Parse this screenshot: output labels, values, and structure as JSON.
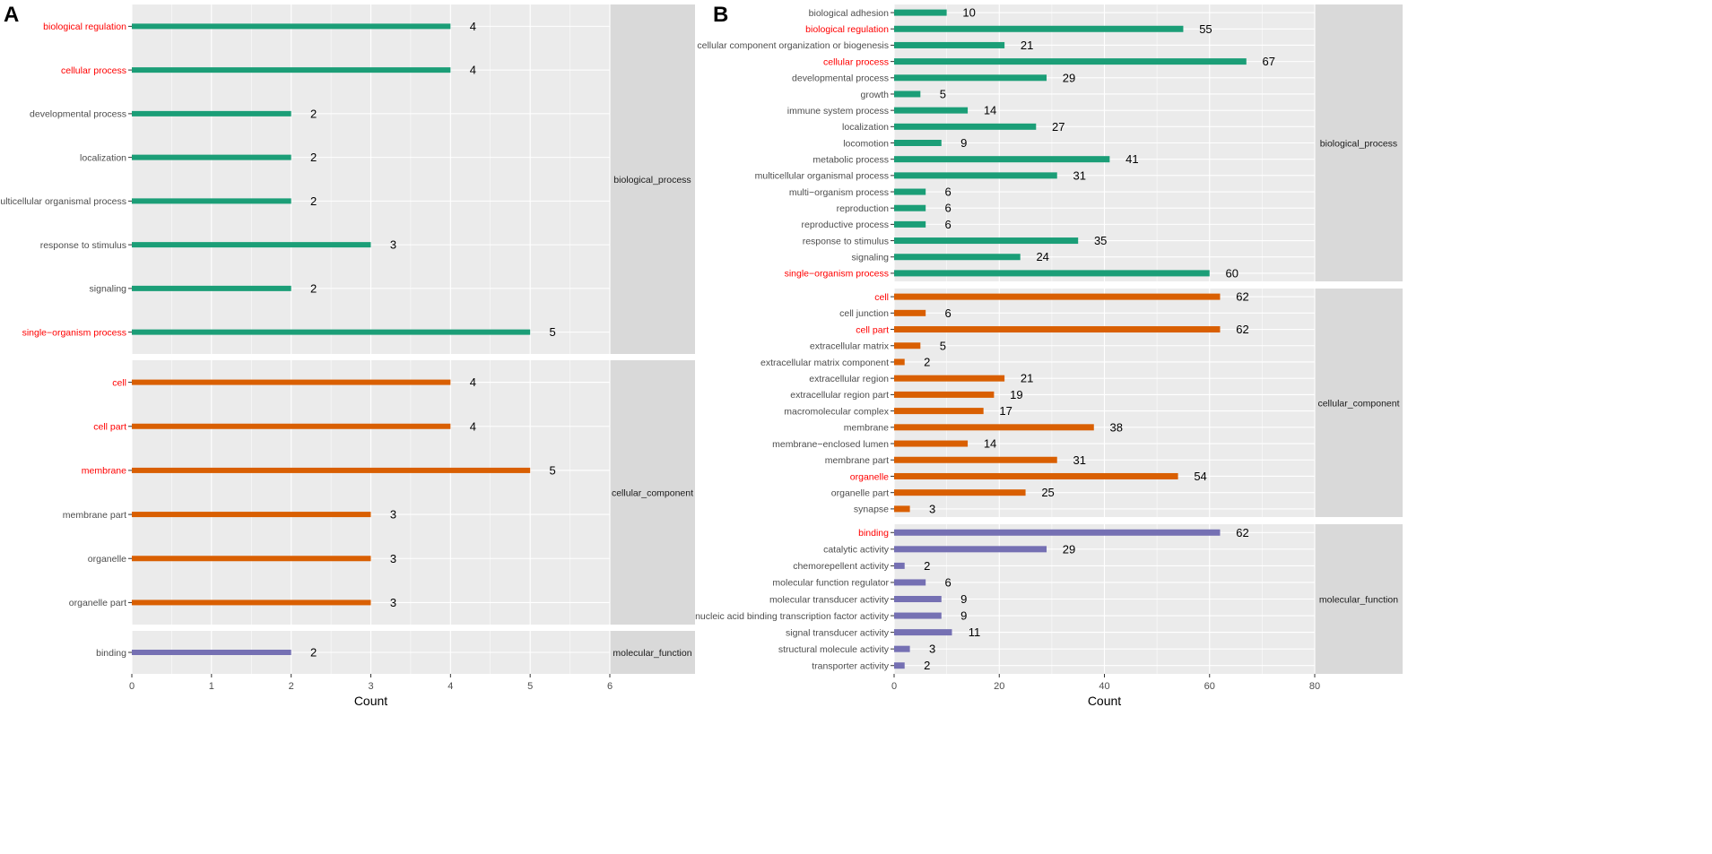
{
  "chart_data": [
    {
      "panel_label": "A",
      "type": "bar",
      "orientation": "horizontal",
      "xlabel": "Count",
      "xlim": [
        0,
        7
      ],
      "xticks": [
        0,
        1,
        2,
        3,
        4,
        5,
        6
      ],
      "colors": {
        "biological_process": "#1b9e77",
        "cellular_component": "#d95f02",
        "molecular_function": "#7570b3",
        "highlight_label": "#ff0000",
        "normal_label": "#4d4d4d"
      },
      "facets": [
        {
          "name": "biological_process",
          "items": [
            {
              "label": "biological regulation",
              "value": 4,
              "highlight": true
            },
            {
              "label": "cellular process",
              "value": 4,
              "highlight": true
            },
            {
              "label": "developmental process",
              "value": 2,
              "highlight": false
            },
            {
              "label": "localization",
              "value": 2,
              "highlight": false
            },
            {
              "label": "multicellular organismal process",
              "value": 2,
              "highlight": false
            },
            {
              "label": "response to stimulus",
              "value": 3,
              "highlight": false
            },
            {
              "label": "signaling",
              "value": 2,
              "highlight": false
            },
            {
              "label": "single−organism process",
              "value": 5,
              "highlight": true
            }
          ]
        },
        {
          "name": "cellular_component",
          "items": [
            {
              "label": "cell",
              "value": 4,
              "highlight": true
            },
            {
              "label": "cell part",
              "value": 4,
              "highlight": true
            },
            {
              "label": "membrane",
              "value": 5,
              "highlight": true
            },
            {
              "label": "membrane part",
              "value": 3,
              "highlight": false
            },
            {
              "label": "organelle",
              "value": 3,
              "highlight": false
            },
            {
              "label": "organelle part",
              "value": 3,
              "highlight": false
            }
          ]
        },
        {
          "name": "molecular_function",
          "items": [
            {
              "label": "binding",
              "value": 2,
              "highlight": false
            }
          ]
        }
      ]
    },
    {
      "panel_label": "B",
      "type": "bar",
      "orientation": "horizontal",
      "xlabel": "Count",
      "xlim": [
        0,
        80
      ],
      "xticks": [
        0,
        20,
        40,
        60,
        80
      ],
      "colors": {
        "biological_process": "#1b9e77",
        "cellular_component": "#d95f02",
        "molecular_function": "#7570b3",
        "highlight_label": "#ff0000",
        "normal_label": "#4d4d4d"
      },
      "facets": [
        {
          "name": "biological_process",
          "items": [
            {
              "label": "biological adhesion",
              "value": 10,
              "highlight": false
            },
            {
              "label": "biological regulation",
              "value": 55,
              "highlight": true
            },
            {
              "label": "cellular component organization or biogenesis",
              "value": 21,
              "highlight": false
            },
            {
              "label": "cellular process",
              "value": 67,
              "highlight": true
            },
            {
              "label": "developmental process",
              "value": 29,
              "highlight": false
            },
            {
              "label": "growth",
              "value": 5,
              "highlight": false
            },
            {
              "label": "immune system process",
              "value": 14,
              "highlight": false
            },
            {
              "label": "localization",
              "value": 27,
              "highlight": false
            },
            {
              "label": "locomotion",
              "value": 9,
              "highlight": false
            },
            {
              "label": "metabolic process",
              "value": 41,
              "highlight": false
            },
            {
              "label": "multicellular organismal process",
              "value": 31,
              "highlight": false
            },
            {
              "label": "multi−organism process",
              "value": 6,
              "highlight": false
            },
            {
              "label": "reproduction",
              "value": 6,
              "highlight": false
            },
            {
              "label": "reproductive process",
              "value": 6,
              "highlight": false
            },
            {
              "label": "response to stimulus",
              "value": 35,
              "highlight": false
            },
            {
              "label": "signaling",
              "value": 24,
              "highlight": false
            },
            {
              "label": "single−organism process",
              "value": 60,
              "highlight": true
            }
          ]
        },
        {
          "name": "cellular_component",
          "items": [
            {
              "label": "cell",
              "value": 62,
              "highlight": true
            },
            {
              "label": "cell junction",
              "value": 6,
              "highlight": false
            },
            {
              "label": "cell part",
              "value": 62,
              "highlight": true
            },
            {
              "label": "extracellular matrix",
              "value": 5,
              "highlight": false
            },
            {
              "label": "extracellular matrix component",
              "value": 2,
              "highlight": false
            },
            {
              "label": "extracellular region",
              "value": 21,
              "highlight": false
            },
            {
              "label": "extracellular region part",
              "value": 19,
              "highlight": false
            },
            {
              "label": "macromolecular complex",
              "value": 17,
              "highlight": false
            },
            {
              "label": "membrane",
              "value": 38,
              "highlight": false
            },
            {
              "label": "membrane−enclosed lumen",
              "value": 14,
              "highlight": false
            },
            {
              "label": "membrane part",
              "value": 31,
              "highlight": false
            },
            {
              "label": "organelle",
              "value": 54,
              "highlight": true
            },
            {
              "label": "organelle part",
              "value": 25,
              "highlight": false
            },
            {
              "label": "synapse",
              "value": 3,
              "highlight": false
            }
          ]
        },
        {
          "name": "molecular_function",
          "items": [
            {
              "label": "binding",
              "value": 62,
              "highlight": true
            },
            {
              "label": "catalytic activity",
              "value": 29,
              "highlight": false
            },
            {
              "label": "chemorepellent activity",
              "value": 2,
              "highlight": false
            },
            {
              "label": "molecular function regulator",
              "value": 6,
              "highlight": false
            },
            {
              "label": "molecular transducer activity",
              "value": 9,
              "highlight": false
            },
            {
              "label": "nucleic acid binding transcription factor activity",
              "value": 9,
              "highlight": false
            },
            {
              "label": "signal transducer activity",
              "value": 11,
              "highlight": false
            },
            {
              "label": "structural molecule activity",
              "value": 3,
              "highlight": false
            },
            {
              "label": "transporter activity",
              "value": 2,
              "highlight": false
            }
          ]
        }
      ]
    }
  ]
}
